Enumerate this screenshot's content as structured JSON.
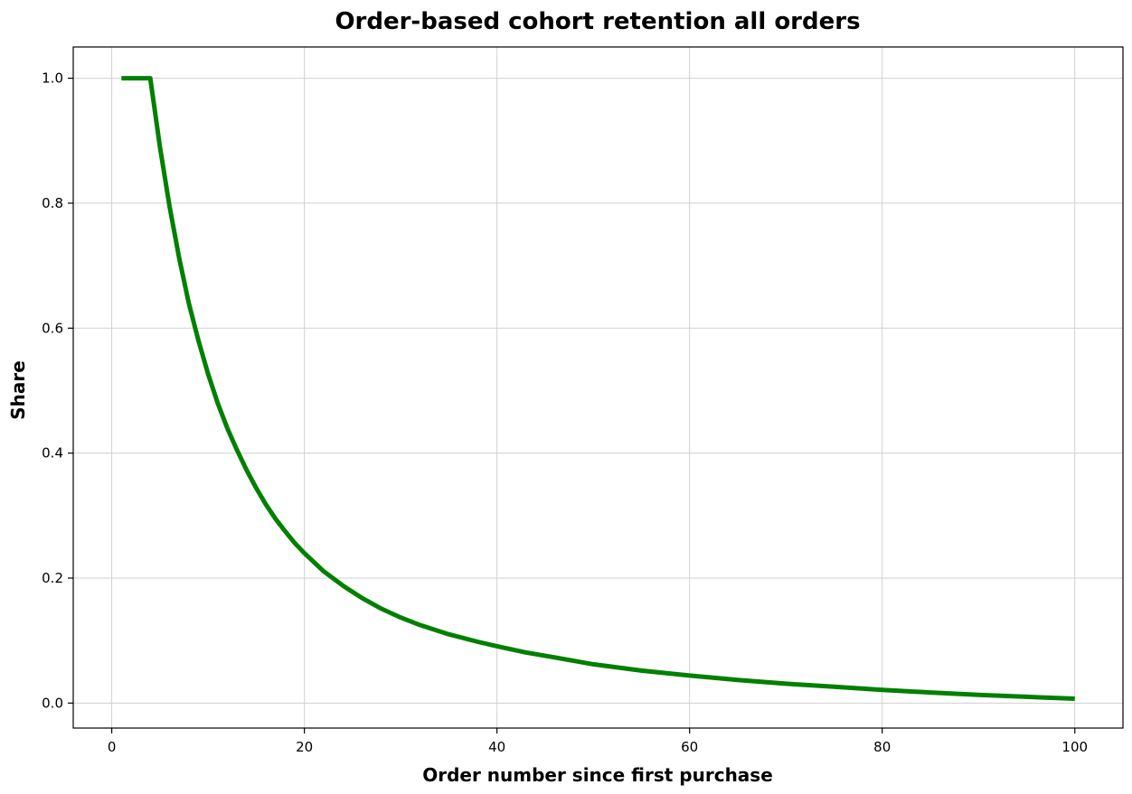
{
  "chart_data": {
    "type": "line",
    "title": "Order-based cohort retention all orders",
    "xlabel": "Order number since first purchase",
    "ylabel": "Share",
    "xlim": [
      -4,
      105
    ],
    "ylim": [
      -0.04,
      1.05
    ],
    "xticks": [
      0,
      20,
      40,
      60,
      80,
      100
    ],
    "yticks": [
      0.0,
      0.2,
      0.4,
      0.6,
      0.8,
      1.0
    ],
    "xtick_labels": [
      "0",
      "20",
      "40",
      "60",
      "80",
      "100"
    ],
    "ytick_labels": [
      "0.0",
      "0.2",
      "0.4",
      "0.6",
      "0.8",
      "1.0"
    ],
    "grid": true,
    "series": [
      {
        "color": "#008000",
        "x": [
          1,
          2,
          3,
          4,
          5,
          6,
          7,
          8,
          9,
          10,
          11,
          12,
          13,
          14,
          15,
          16,
          17,
          18,
          19,
          20,
          22,
          24,
          26,
          28,
          30,
          32,
          35,
          38,
          40,
          43,
          46,
          50,
          55,
          60,
          65,
          70,
          75,
          80,
          85,
          90,
          95,
          100
        ],
        "y": [
          1.0,
          1.0,
          1.0,
          1.0,
          0.89,
          0.795,
          0.712,
          0.64,
          0.58,
          0.527,
          0.48,
          0.44,
          0.405,
          0.373,
          0.344,
          0.318,
          0.295,
          0.275,
          0.256,
          0.24,
          0.211,
          0.188,
          0.168,
          0.151,
          0.137,
          0.125,
          0.11,
          0.098,
          0.091,
          0.081,
          0.073,
          0.062,
          0.052,
          0.044,
          0.037,
          0.031,
          0.026,
          0.021,
          0.017,
          0.013,
          0.01,
          0.007
        ]
      }
    ]
  }
}
